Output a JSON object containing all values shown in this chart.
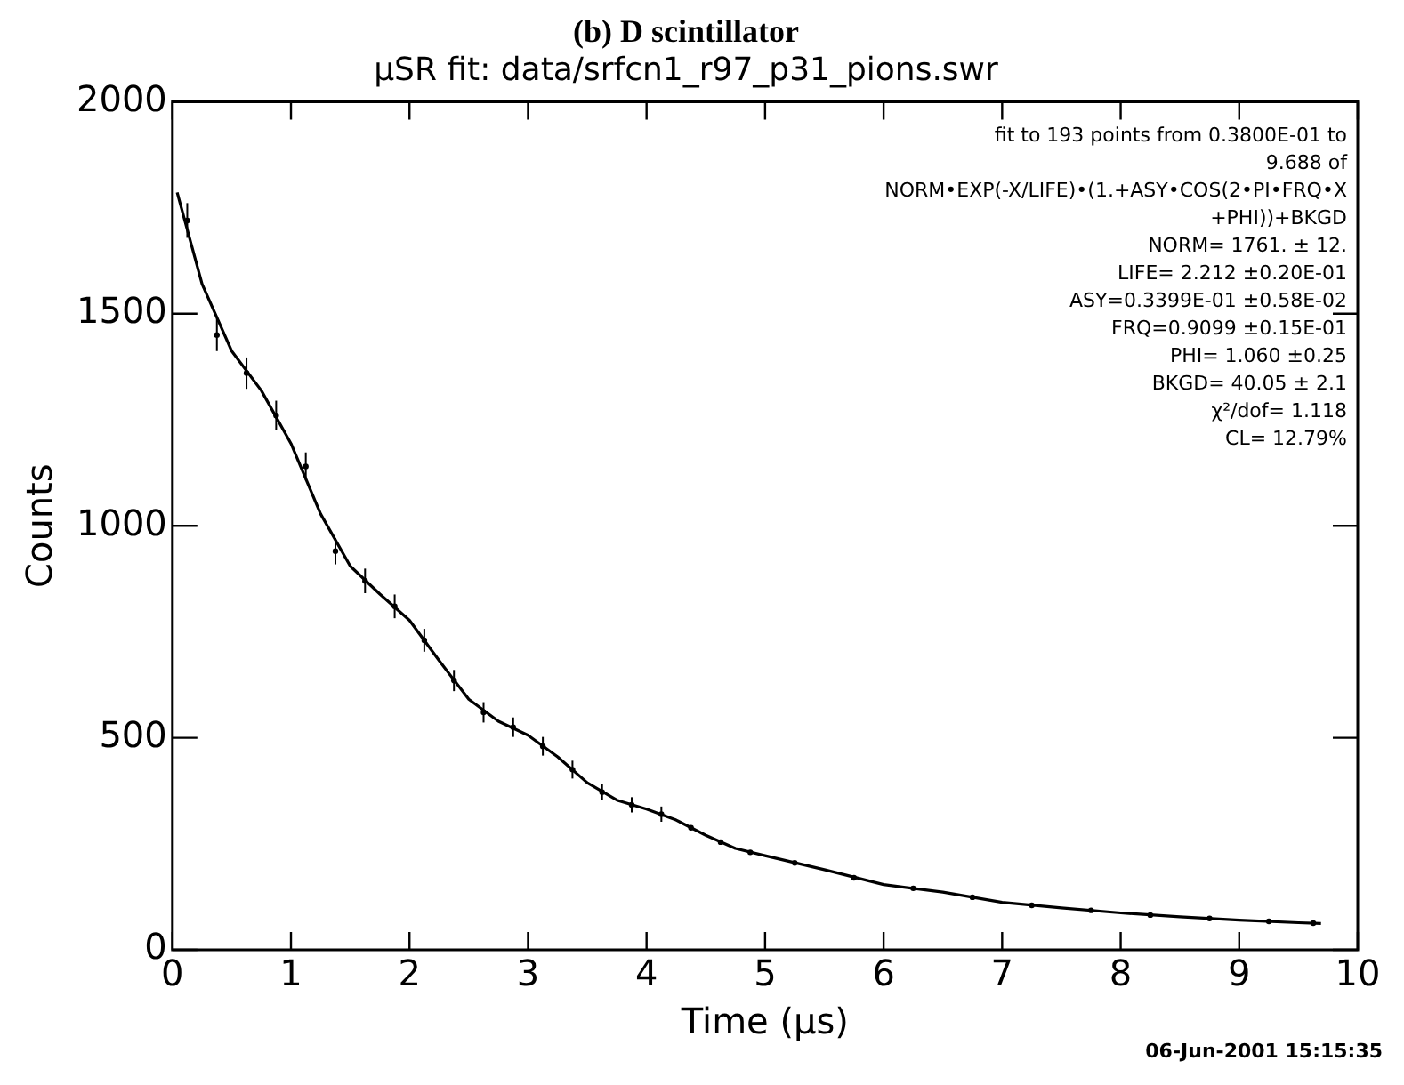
{
  "chart_data": {
    "type": "scatter",
    "title": "(b) D scintillator",
    "subtitle": "μSR fit: data/srfcn1_r97_p31_pions.swr",
    "xlabel": "Time (μs)",
    "ylabel": "Counts",
    "xlim": [
      0,
      10
    ],
    "xticks": [
      0,
      1,
      2,
      3,
      4,
      5,
      6,
      7,
      8,
      9,
      10
    ],
    "ylim": [
      0,
      2000
    ],
    "yticks": [
      0,
      500,
      1000,
      1500,
      2000
    ],
    "legend": false,
    "series": [
      {
        "type": "scatter",
        "color": "#000000",
        "marker": "circle",
        "x": [
          0.125,
          0.375,
          0.625,
          0.875,
          1.125,
          1.375,
          1.625,
          1.875,
          2.125,
          2.375,
          2.625,
          2.875,
          3.125,
          3.375,
          3.625,
          3.875,
          4.125,
          4.375,
          4.625,
          4.875,
          5.25,
          5.75,
          6.25,
          6.75,
          7.25,
          7.75,
          8.25,
          8.75,
          9.25,
          9.625
        ],
        "values": [
          1720,
          1450,
          1360,
          1260,
          1140,
          940,
          870,
          810,
          730,
          635,
          560,
          525,
          480,
          425,
          372,
          342,
          320,
          288,
          254,
          230,
          205,
          170,
          145,
          124,
          105,
          93,
          82,
          74,
          67,
          63
        ],
        "errors": [
          41,
          38,
          37,
          35,
          33,
          31,
          29,
          28,
          27,
          25,
          24,
          23,
          22,
          21,
          19,
          18,
          18,
          null,
          null,
          null,
          null,
          null,
          null,
          null,
          null,
          null,
          null,
          null,
          null,
          null
        ]
      },
      {
        "type": "line",
        "color": "#000000",
        "marker": "none",
        "line_style": "solid",
        "x": [
          0.04,
          0.25,
          0.5,
          0.75,
          1.0,
          1.25,
          1.5,
          1.75,
          2.0,
          2.25,
          2.5,
          2.75,
          3.0,
          3.25,
          3.5,
          3.75,
          4.0,
          4.25,
          4.5,
          4.75,
          5.0,
          5.5,
          6.0,
          6.5,
          7.0,
          7.5,
          8.0,
          8.5,
          9.0,
          9.5,
          9.69
        ],
        "values": [
          1786,
          1570,
          1412,
          1319,
          1194,
          1028,
          905,
          839,
          777,
          682,
          591,
          539,
          506,
          455,
          394,
          353,
          332,
          306,
          270,
          239,
          222,
          189,
          154,
          136,
          112,
          99,
          87,
          78,
          70,
          64,
          62
        ]
      }
    ],
    "annotations": [
      "fit to 193 points from 0.3800E-01 to",
      "9.688 of",
      "NORM•EXP(-X/LIFE)•(1.+ASY•COS(2•PI•FRQ•X",
      "+PHI))+BKGD",
      "NORM= 1761. ± 12.",
      "LIFE= 2.212 ±0.20E-01",
      "ASY=0.3399E-01 ±0.58E-02",
      "FRQ=0.9099 ±0.15E-01",
      "PHI= 1.060 ±0.25",
      "BKGD= 40.05 ± 2.1",
      "χ²/dof= 1.118",
      "CL= 12.79%",
      "06-Jun-2001 15:15:35"
    ]
  }
}
